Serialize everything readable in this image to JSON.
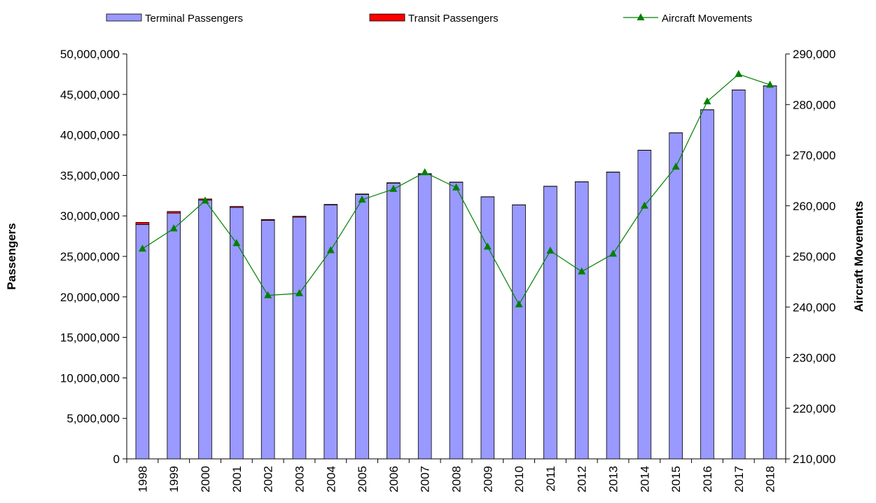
{
  "chart_data": {
    "type": "bar-line",
    "categories": [
      "1998",
      "1999",
      "2000",
      "2001",
      "2002",
      "2003",
      "2004",
      "2005",
      "2006",
      "2007",
      "2008",
      "2009",
      "2010",
      "2011",
      "2012",
      "2013",
      "2014",
      "2015",
      "2016",
      "2017",
      "2018"
    ],
    "series": [
      {
        "name": "Terminal Passengers",
        "color": "#9999ff",
        "stack": true,
        "values": [
          28950000,
          30350000,
          31950000,
          31050000,
          29450000,
          29850000,
          31350000,
          32650000,
          34050000,
          35150000,
          34150000,
          32350000,
          31350000,
          33650000,
          34200000,
          35400000,
          38100000,
          40250000,
          43100000,
          45550000,
          46050000
        ]
      },
      {
        "name": "Transit Passengers",
        "color": "#ff0000",
        "stack": true,
        "values": [
          250000,
          200000,
          150000,
          120000,
          110000,
          110000,
          70000,
          60000,
          50000,
          70000,
          30000,
          20000,
          20000,
          20000,
          20000,
          20000,
          20000,
          10000,
          10000,
          10000,
          10000
        ]
      },
      {
        "name": "Aircraft Movements",
        "color": "#008000",
        "axis": "y2",
        "line": true,
        "values": [
          251500,
          255500,
          261000,
          252600,
          242300,
          242700,
          251200,
          261200,
          263300,
          266600,
          263600,
          251900,
          240500,
          251100,
          247000,
          250500,
          260000,
          267700,
          280600,
          286000,
          283900
        ]
      }
    ],
    "ylabel": "Passengers",
    "y2label": "Aircraft Movements",
    "ylim": [
      0,
      50000000
    ],
    "yticks": [
      {
        "value": 0,
        "label": "0"
      },
      {
        "value": 5000000,
        "label": "5,000,000"
      },
      {
        "value": 10000000,
        "label": "10,000,000"
      },
      {
        "value": 15000000,
        "label": "15,000,000"
      },
      {
        "value": 20000000,
        "label": "20,000,000"
      },
      {
        "value": 25000000,
        "label": "25,000,000"
      },
      {
        "value": 30000000,
        "label": "30,000,000"
      },
      {
        "value": 35000000,
        "label": "35,000,000"
      },
      {
        "value": 40000000,
        "label": "40,000,000"
      },
      {
        "value": 45000000,
        "label": "45,000,000"
      },
      {
        "value": 50000000,
        "label": "50,000,000"
      }
    ],
    "y2lim": [
      210000,
      290000
    ],
    "y2ticks": [
      {
        "value": 210000,
        "label": "210,000"
      },
      {
        "value": 220000,
        "label": "220,000"
      },
      {
        "value": 230000,
        "label": "230,000"
      },
      {
        "value": 240000,
        "label": "240,000"
      },
      {
        "value": 250000,
        "label": "250,000"
      },
      {
        "value": 260000,
        "label": "260,000"
      },
      {
        "value": 270000,
        "label": "270,000"
      },
      {
        "value": 280000,
        "label": "280,000"
      },
      {
        "value": 290000,
        "label": "290,000"
      }
    ],
    "legend": "top"
  }
}
